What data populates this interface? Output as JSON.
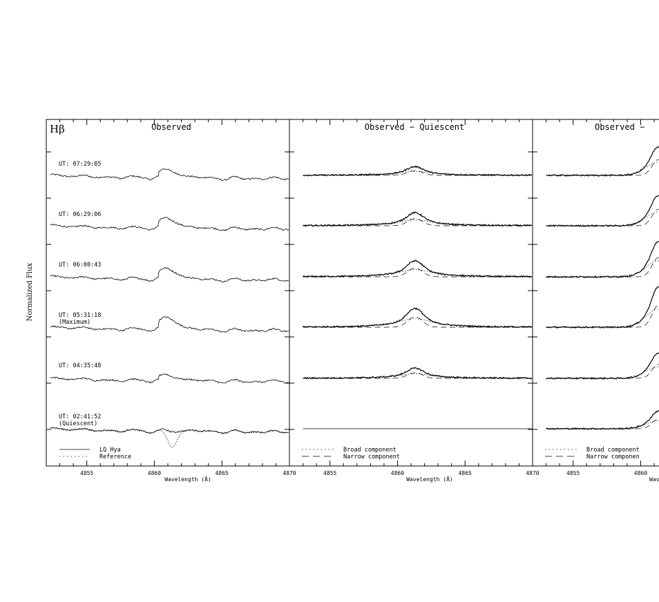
{
  "figure": {
    "ylabel": "Normalized Flux"
  },
  "chart_data": [
    {
      "type": "line",
      "title": "Observed",
      "corner_label": "Hβ",
      "xlabel": "Wavelength (Å)",
      "xlim": [
        4852,
        4870
      ],
      "xticks": [
        "4855",
        "4860",
        "4865",
        "4870"
      ],
      "legend": {
        "placement": "bottom-left",
        "entries": [
          {
            "label": "LQ Hya",
            "style": "solid"
          },
          {
            "label": "Reference",
            "style": "dotted"
          }
        ]
      },
      "series": [
        {
          "name": "UT: 07:29:05",
          "kind": "observed"
        },
        {
          "name": "UT: 06:29:06",
          "kind": "observed"
        },
        {
          "name": "UT: 06:00:43",
          "kind": "observed"
        },
        {
          "name": "UT: 05:31:18",
          "sublabel": "(Maximum)",
          "kind": "observed"
        },
        {
          "name": "UT: 04:35:48",
          "kind": "observed"
        },
        {
          "name": "UT: 02:41:52",
          "sublabel": "(Quiescent)",
          "kind": "observed_with_reference"
        }
      ]
    },
    {
      "type": "line",
      "title": "Observed − Quiescent",
      "xlabel": "Wavelength (Å)",
      "xlim": [
        4852,
        4870
      ],
      "xticks": [
        "4855",
        "4860",
        "4865",
        "4870"
      ],
      "line_center": 4861.3,
      "legend": {
        "placement": "bottom-left",
        "entries": [
          {
            "label": "Broad component",
            "style": "dotted"
          },
          {
            "label": "Narrow component",
            "style": "dashed"
          }
        ]
      },
      "peak_heights": [
        0.3,
        0.45,
        0.55,
        0.65,
        0.35,
        0.0
      ]
    },
    {
      "type": "line",
      "title": "Observed −",
      "xlabel": "Wav",
      "xticks": [
        "4855",
        "4860"
      ],
      "legend": {
        "placement": "bottom-left",
        "entries": [
          {
            "label": "Broad component",
            "style": "dotted"
          },
          {
            "label": "Narrow componen",
            "style": "dashed"
          }
        ]
      },
      "peak_heights": [
        0.9,
        0.95,
        1.1,
        1.25,
        0.8,
        0.55
      ]
    }
  ]
}
